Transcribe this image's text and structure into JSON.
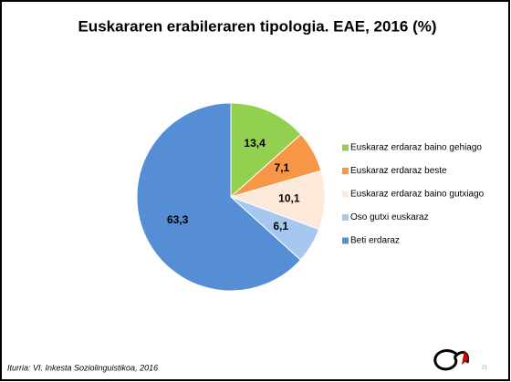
{
  "chart_data": {
    "type": "pie",
    "title": "Euskararen erabileraren tipologia. EAE, 2016 (%)",
    "categories": [
      "Euskaraz erdaraz baino gehiago",
      "Euskaraz erdaraz beste",
      "Euskaraz erdaraz baino gutxiago",
      "Oso gutxi euskaraz",
      "Beti erdaraz"
    ],
    "values": [
      13.4,
      7.1,
      10.1,
      6.1,
      63.3
    ],
    "value_labels": [
      "13,4",
      "7,1",
      "10,1",
      "6,1",
      "63,3"
    ],
    "colors": [
      "#92d050",
      "#f79646",
      "#fde9d9",
      "#a6c8f0",
      "#558ed5"
    ],
    "legend": "right"
  },
  "source": "Iturria: VI. Inkesta Soziolinguistikoa, 2016",
  "page_number": "21"
}
